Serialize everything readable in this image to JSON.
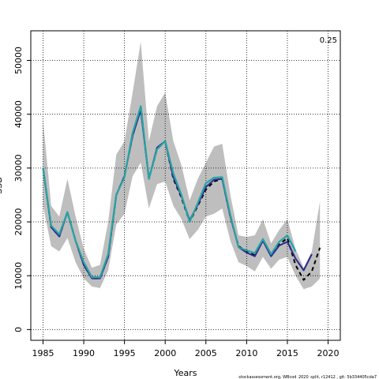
{
  "chart_data": {
    "type": "line",
    "title": "",
    "xlabel": "Years",
    "ylabel": "SSB",
    "xlim": [
      1983.5,
      2021.5
    ],
    "ylim": [
      -2000,
      55500
    ],
    "xticks": [
      1985,
      1990,
      1995,
      2000,
      2005,
      2010,
      2015,
      2020
    ],
    "yticks": [
      0,
      10000,
      20000,
      30000,
      40000,
      50000
    ],
    "grid": true,
    "corner_label": "0.25",
    "footer": "stockassessment.org, WBcod_2020_split, r12412 , git: 5b334405cda7",
    "x": [
      1985,
      1986,
      1987,
      1988,
      1989,
      1990,
      1991,
      1992,
      1993,
      1994,
      1995,
      1996,
      1997,
      1998,
      1999,
      2000,
      2001,
      2002,
      2003,
      2004,
      2005,
      2006,
      2007,
      2008,
      2009,
      2010,
      2011,
      2012,
      2013,
      2014,
      2015,
      2016,
      2017,
      2018,
      2019
    ],
    "band": {
      "upper": [
        39000,
        23000,
        21000,
        28000,
        21000,
        15000,
        11500,
        12000,
        20000,
        32500,
        35000,
        44000,
        53500,
        35000,
        41500,
        44000,
        35000,
        30500,
        24000,
        28000,
        31000,
        34000,
        34500,
        25000,
        17500,
        17200,
        17500,
        20500,
        16000,
        18500,
        20500,
        15000,
        11500,
        14500,
        23800
      ],
      "lower": [
        23000,
        15500,
        14500,
        17000,
        12500,
        9500,
        8000,
        7700,
        11000,
        19500,
        21500,
        28500,
        31000,
        22500,
        27000,
        27500,
        23000,
        20500,
        16800,
        18500,
        21000,
        21500,
        22500,
        16500,
        12500,
        11800,
        10800,
        13500,
        11300,
        13000,
        13500,
        10000,
        7500,
        8000,
        9500
      ]
    },
    "series": [
      {
        "color": "#000000",
        "dash": "dashed",
        "values": [
          30000,
          19000,
          17300,
          21800,
          16500,
          12000,
          9500,
          9500,
          13500,
          25000,
          28500,
          36000,
          41000,
          28000,
          33500,
          35000,
          28000,
          24500,
          20000,
          23000,
          26000,
          27500,
          28000,
          21000,
          15500,
          14500,
          13800,
          16700,
          13800,
          15800,
          17000,
          12000,
          9200,
          10800,
          15200
        ]
      },
      {
        "color": "#2b2b8f",
        "dash": "solid",
        "values": [
          30000,
          19000,
          17300,
          21800,
          16500,
          12000,
          9500,
          9500,
          13500,
          25000,
          28500,
          36000,
          40800,
          28000,
          33800,
          35000,
          28300,
          24800,
          20300,
          23200,
          26500,
          27800,
          28000,
          21000,
          15300,
          14300,
          13600,
          16500,
          13600,
          15600,
          16300,
          13200,
          11000,
          14000,
          null
        ]
      },
      {
        "color": "#27a3a3",
        "dash": "solid",
        "values": [
          30000,
          19300,
          17700,
          21800,
          16500,
          12500,
          9700,
          9700,
          14000,
          25000,
          28300,
          36500,
          41500,
          28000,
          33500,
          35000,
          29000,
          25000,
          20000,
          23500,
          27200,
          28200,
          28300,
          21300,
          15300,
          14700,
          14200,
          16800,
          14000,
          16300,
          17500,
          14500,
          null,
          null,
          null
        ]
      }
    ]
  }
}
